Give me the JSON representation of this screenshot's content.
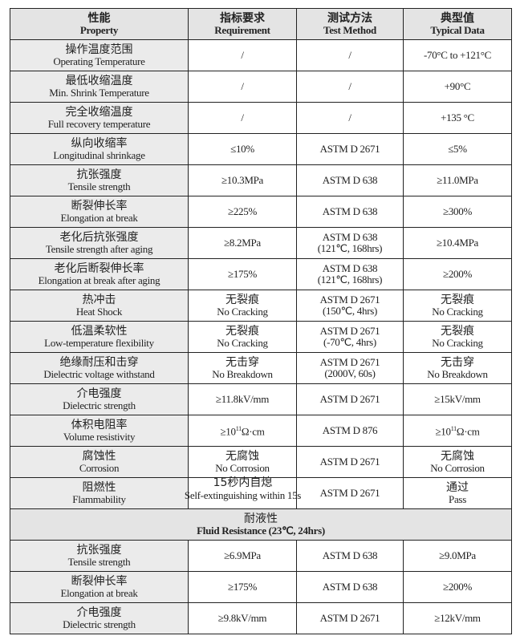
{
  "header": [
    {
      "cn": "性能",
      "en": "Property"
    },
    {
      "cn": "指标要求",
      "en": "Requirement"
    },
    {
      "cn": "测试方法",
      "en": "Test Method"
    },
    {
      "cn": "典型值",
      "en": "Typical Data"
    }
  ],
  "rows": [
    {
      "cn": "操作温度范围",
      "en": "Operating Temperature",
      "req": "/",
      "method": "/",
      "typical": "-70°C to +121°C"
    },
    {
      "cn": "最低收缩温度",
      "en": "Min. Shrink Temperature",
      "req": "/",
      "method": "/",
      "typical": "+90°C"
    },
    {
      "cn": "完全收缩温度",
      "en": "Full recovery temperature",
      "req": "/",
      "method": "/",
      "typical": "+135 °C"
    },
    {
      "cn": "纵向收缩率",
      "en": "Longitudinal shrinkage",
      "req": "≤10%",
      "method": "ASTM D 2671",
      "typical": "≤5%"
    },
    {
      "cn": "抗张强度",
      "en": "Tensile strength",
      "req": "≥10.3MPa",
      "method": "ASTM D 638",
      "typical": "≥11.0MPa"
    },
    {
      "cn": "断裂伸长率",
      "en": "Elongation at break",
      "req": "≥225%",
      "method": "ASTM D 638",
      "typical": "≥300%"
    },
    {
      "cn": "老化后抗张强度",
      "en": "Tensile strength after aging",
      "req": "≥8.2MPa",
      "method": "ASTM D 638",
      "method2": "(121℃, 168hrs)",
      "typical": "≥10.4MPa"
    },
    {
      "cn": "老化后断裂伸长率",
      "en": "Elongation at break after aging",
      "req": "≥175%",
      "method": "ASTM D 638",
      "method2": "(121℃, 168hrs)",
      "typical": "≥200%"
    },
    {
      "cn": "热冲击",
      "en": "Heat Shock",
      "req_cn": "无裂痕",
      "req": "No Cracking",
      "method": "ASTM D 2671",
      "method2": "(150℃, 4hrs)",
      "typical_cn": "无裂痕",
      "typical": "No Cracking"
    },
    {
      "cn": "低温柔软性",
      "en": "Low-temperature flexibility",
      "req_cn": "无裂痕",
      "req": "No Cracking",
      "method": "ASTM D 2671",
      "method2": "(-70℃, 4hrs)",
      "typical_cn": "无裂痕",
      "typical": "No Cracking"
    },
    {
      "cn": "绝缘耐压和击穿",
      "en": "Dielectric voltage withstand",
      "req_cn": "无击穿",
      "req": "No Breakdown",
      "method": "ASTM D 2671",
      "method2": "(2000V, 60s)",
      "typical_cn": "无击穿",
      "typical": "No Breakdown"
    },
    {
      "cn": "介电强度",
      "en": "Dielectric strength",
      "req": "≥11.8kV/mm",
      "method": "ASTM D 2671",
      "typical": "≥15kV/mm"
    },
    {
      "cn": "体积电阻率",
      "en": "Volume resistivity",
      "req": "≥10",
      "req_sup": "11",
      "req_unit": "Ω·cm",
      "method": "ASTM D 876",
      "typical": "≥10",
      "typical_sup": "11",
      "typical_unit": "Ω·cm"
    },
    {
      "cn": "腐蚀性",
      "en": "Corrosion",
      "req_cn": "无腐蚀",
      "req": "No Corrosion",
      "method": "ASTM D 2671",
      "typical_cn": "无腐蚀",
      "typical": "No Corrosion"
    },
    {
      "cn": "阻燃性",
      "en": "Flammability",
      "req_cn": "15秒内自熄",
      "req": "Self-extinguishing within 15s",
      "method": "ASTM D 2671",
      "typical_cn": "通过",
      "typical": "Pass"
    }
  ],
  "fluid_section": {
    "cn": "耐液性",
    "en": "Fluid Resistance (23℃, 24hrs)"
  },
  "fluid_rows": [
    {
      "cn": "抗张强度",
      "en": "Tensile strength",
      "req": "≥6.9MPa",
      "method": "ASTM D 638",
      "typical": "≥9.0MPa"
    },
    {
      "cn": "断裂伸长率",
      "en": "Elongation at break",
      "req": "≥175%",
      "method": "ASTM D 638",
      "typical": "≥200%"
    },
    {
      "cn": "介电强度",
      "en": "Dielectric strength",
      "req": "≥9.8kV/mm",
      "method": "ASTM D 2671",
      "typical": "≥12kV/mm"
    }
  ]
}
